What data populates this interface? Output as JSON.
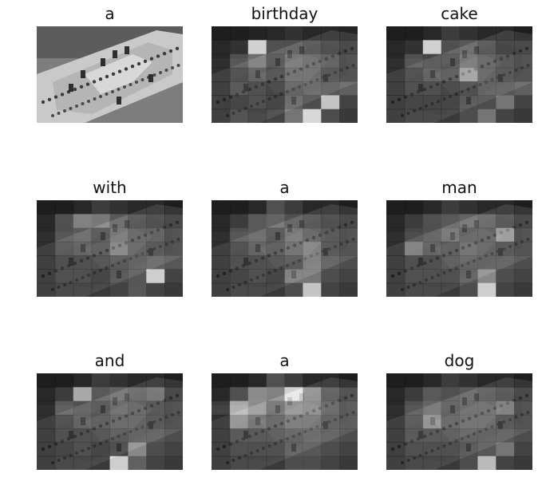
{
  "figure": {
    "panels": [
      {
        "word": "a",
        "attention": null
      },
      {
        "word": "birthday",
        "attention": [
          [
            0.05,
            0.05,
            0.08,
            0.1,
            0.15,
            0.1,
            0.1,
            0.08
          ],
          [
            0.1,
            0.15,
            0.95,
            0.3,
            0.3,
            0.25,
            0.2,
            0.15
          ],
          [
            0.1,
            0.3,
            0.45,
            0.25,
            0.4,
            0.35,
            0.3,
            0.2
          ],
          [
            0.1,
            0.2,
            0.3,
            0.2,
            0.35,
            0.35,
            0.25,
            0.2
          ],
          [
            0.1,
            0.25,
            0.2,
            0.15,
            0.3,
            0.35,
            0.3,
            0.35
          ],
          [
            0.1,
            0.15,
            0.2,
            0.15,
            0.35,
            0.25,
            0.85,
            0.2
          ],
          [
            0.1,
            0.2,
            0.15,
            0.2,
            0.45,
            0.95,
            0.25,
            0.15
          ]
        ]
      },
      {
        "word": "cake",
        "attention": [
          [
            0.05,
            0.05,
            0.1,
            0.2,
            0.15,
            0.1,
            0.1,
            0.05
          ],
          [
            0.1,
            0.15,
            0.95,
            0.3,
            0.35,
            0.25,
            0.15,
            0.15
          ],
          [
            0.1,
            0.3,
            0.25,
            0.25,
            0.4,
            0.3,
            0.25,
            0.2
          ],
          [
            0.1,
            0.2,
            0.3,
            0.25,
            0.6,
            0.3,
            0.25,
            0.2
          ],
          [
            0.1,
            0.2,
            0.2,
            0.15,
            0.2,
            0.3,
            0.3,
            0.35
          ],
          [
            0.1,
            0.15,
            0.15,
            0.15,
            0.25,
            0.25,
            0.45,
            0.2
          ],
          [
            0.1,
            0.15,
            0.15,
            0.15,
            0.25,
            0.45,
            0.2,
            0.15
          ]
        ]
      },
      {
        "word": "with",
        "attention": [
          [
            0.05,
            0.05,
            0.1,
            0.2,
            0.15,
            0.1,
            0.1,
            0.05
          ],
          [
            0.1,
            0.3,
            0.55,
            0.5,
            0.35,
            0.25,
            0.2,
            0.15
          ],
          [
            0.1,
            0.3,
            0.35,
            0.25,
            0.4,
            0.3,
            0.3,
            0.2
          ],
          [
            0.1,
            0.25,
            0.3,
            0.25,
            0.45,
            0.3,
            0.25,
            0.2
          ],
          [
            0.1,
            0.2,
            0.2,
            0.2,
            0.25,
            0.3,
            0.35,
            0.3
          ],
          [
            0.1,
            0.2,
            0.2,
            0.15,
            0.25,
            0.3,
            0.9,
            0.2
          ],
          [
            0.1,
            0.15,
            0.15,
            0.15,
            0.2,
            0.3,
            0.2,
            0.15
          ]
        ]
      },
      {
        "word": "a",
        "attention": [
          [
            0.05,
            0.05,
            0.1,
            0.3,
            0.2,
            0.1,
            0.1,
            0.05
          ],
          [
            0.1,
            0.2,
            0.35,
            0.4,
            0.3,
            0.25,
            0.2,
            0.15
          ],
          [
            0.1,
            0.3,
            0.35,
            0.25,
            0.4,
            0.3,
            0.25,
            0.2
          ],
          [
            0.1,
            0.2,
            0.3,
            0.25,
            0.35,
            0.45,
            0.25,
            0.2
          ],
          [
            0.1,
            0.2,
            0.2,
            0.2,
            0.25,
            0.45,
            0.3,
            0.25
          ],
          [
            0.1,
            0.15,
            0.2,
            0.15,
            0.45,
            0.45,
            0.25,
            0.2
          ],
          [
            0.1,
            0.15,
            0.15,
            0.15,
            0.25,
            0.85,
            0.2,
            0.15
          ]
        ]
      },
      {
        "word": "man",
        "attention": [
          [
            0.05,
            0.05,
            0.1,
            0.2,
            0.15,
            0.1,
            0.1,
            0.05
          ],
          [
            0.1,
            0.2,
            0.3,
            0.35,
            0.4,
            0.35,
            0.25,
            0.15
          ],
          [
            0.1,
            0.25,
            0.3,
            0.4,
            0.3,
            0.3,
            0.6,
            0.2
          ],
          [
            0.1,
            0.45,
            0.3,
            0.25,
            0.35,
            0.3,
            0.25,
            0.2
          ],
          [
            0.1,
            0.2,
            0.2,
            0.25,
            0.3,
            0.3,
            0.3,
            0.25
          ],
          [
            0.1,
            0.2,
            0.2,
            0.2,
            0.3,
            0.55,
            0.25,
            0.2
          ],
          [
            0.1,
            0.15,
            0.15,
            0.15,
            0.25,
            0.9,
            0.2,
            0.15
          ]
        ]
      },
      {
        "word": "and",
        "attention": [
          [
            0.05,
            0.05,
            0.1,
            0.2,
            0.15,
            0.1,
            0.1,
            0.05
          ],
          [
            0.1,
            0.2,
            0.75,
            0.35,
            0.4,
            0.35,
            0.4,
            0.15
          ],
          [
            0.1,
            0.35,
            0.3,
            0.25,
            0.35,
            0.3,
            0.25,
            0.2
          ],
          [
            0.1,
            0.2,
            0.3,
            0.25,
            0.3,
            0.3,
            0.25,
            0.2
          ],
          [
            0.1,
            0.2,
            0.2,
            0.2,
            0.25,
            0.3,
            0.3,
            0.25
          ],
          [
            0.1,
            0.15,
            0.2,
            0.15,
            0.2,
            0.55,
            0.25,
            0.2
          ],
          [
            0.1,
            0.15,
            0.15,
            0.15,
            0.9,
            0.35,
            0.2,
            0.15
          ]
        ]
      },
      {
        "word": "a",
        "attention": [
          [
            0.05,
            0.05,
            0.1,
            0.3,
            0.2,
            0.1,
            0.1,
            0.05
          ],
          [
            0.1,
            0.3,
            0.6,
            0.55,
            0.95,
            0.55,
            0.3,
            0.2
          ],
          [
            0.2,
            0.75,
            0.6,
            0.4,
            0.55,
            0.5,
            0.35,
            0.25
          ],
          [
            0.1,
            0.55,
            0.4,
            0.3,
            0.4,
            0.4,
            0.3,
            0.25
          ],
          [
            0.1,
            0.25,
            0.25,
            0.25,
            0.3,
            0.35,
            0.3,
            0.25
          ],
          [
            0.1,
            0.2,
            0.2,
            0.2,
            0.3,
            0.3,
            0.25,
            0.2
          ],
          [
            0.1,
            0.15,
            0.15,
            0.15,
            0.25,
            0.25,
            0.2,
            0.15
          ]
        ]
      },
      {
        "word": "dog",
        "attention": [
          [
            0.05,
            0.05,
            0.1,
            0.2,
            0.15,
            0.1,
            0.1,
            0.05
          ],
          [
            0.1,
            0.2,
            0.35,
            0.3,
            0.35,
            0.3,
            0.25,
            0.15
          ],
          [
            0.1,
            0.3,
            0.4,
            0.3,
            0.35,
            0.35,
            0.45,
            0.2
          ],
          [
            0.1,
            0.25,
            0.55,
            0.3,
            0.35,
            0.35,
            0.25,
            0.2
          ],
          [
            0.1,
            0.25,
            0.25,
            0.25,
            0.3,
            0.3,
            0.3,
            0.25
          ],
          [
            0.1,
            0.2,
            0.2,
            0.2,
            0.25,
            0.3,
            0.45,
            0.2
          ],
          [
            0.1,
            0.15,
            0.15,
            0.15,
            0.25,
            0.8,
            0.2,
            0.15
          ]
        ]
      }
    ]
  }
}
